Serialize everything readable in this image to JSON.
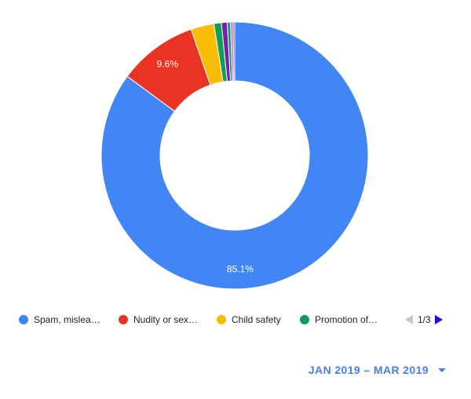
{
  "chart_data": {
    "type": "pie",
    "donut": true,
    "slices": [
      {
        "label": "Spam, misleading and scams",
        "value": 85.1,
        "color": "#4285f4",
        "display": "85.1%"
      },
      {
        "label": "Nudity or sexual content",
        "value": 9.6,
        "color": "#ea3323",
        "display": "9.6%"
      },
      {
        "label": "Child safety",
        "value": 2.8,
        "color": "#fbbc04",
        "display": ""
      },
      {
        "label": "Promotion of violence or violent extremism",
        "value": 0.9,
        "color": "#0f9d58",
        "display": ""
      },
      {
        "label": "",
        "value": 0.7,
        "color": "#7b1fa2",
        "display": ""
      },
      {
        "label": "",
        "value": 0.4,
        "color": "#0097a7",
        "display": ""
      },
      {
        "label": "",
        "value": 0.3,
        "color": "#f06292",
        "display": ""
      },
      {
        "label": "",
        "value": 0.2,
        "color": "#3f51b5",
        "display": ""
      }
    ]
  },
  "legend": {
    "items": [
      {
        "text": "Spam, mislea…",
        "color": "#4285f4"
      },
      {
        "text": "Nudity or sex…",
        "color": "#ea3323"
      },
      {
        "text": "Child safety",
        "color": "#fbbc04"
      },
      {
        "text": "Promotion of…",
        "color": "#0f9d58"
      }
    ],
    "page_indicator": "1/3"
  },
  "date_range": {
    "label": "JAN 2019 – MAR 2019"
  }
}
